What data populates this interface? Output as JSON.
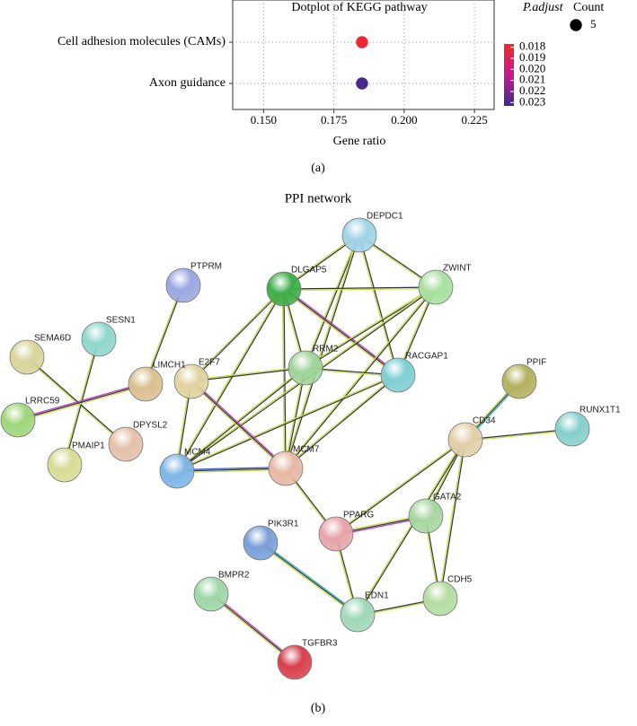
{
  "chart_data": {
    "type": "dotplot",
    "title": "Dotplot of KEGG pathway",
    "categories": [
      "Cell adhesion molecules (CAMs)",
      "Axon guidance"
    ],
    "values": [
      0.185,
      0.185
    ],
    "p_adjust": [
      0.018,
      0.023
    ],
    "counts": [
      5,
      5
    ],
    "x_label": "Gene ratio",
    "xlim": [
      0.139,
      0.232
    ],
    "xticks": [
      {
        "value": 0.15,
        "label": "0.150"
      },
      {
        "value": 0.175,
        "label": "0.175"
      },
      {
        "value": 0.2,
        "label": "0.200"
      },
      {
        "value": 0.225,
        "label": "0.225"
      }
    ],
    "grid": true,
    "colorbar": {
      "title": "P.adjust",
      "lim": [
        0.0177,
        0.0233
      ],
      "colors": [
        "#ee2a24",
        "#c8198f",
        "#3a2a8c"
      ],
      "ticks": [
        0.018,
        0.019,
        {
          "value": 0.02,
          "label": "0.020"
        },
        0.021,
        0.022,
        0.023
      ]
    },
    "size_legend": {
      "title": "Count",
      "values": [
        5
      ]
    },
    "caption": "(a)"
  },
  "network": {
    "title": "PPI network",
    "caption": "(b)",
    "nodes": [
      "DEPDC1",
      "PTPRM",
      "DLGAP5",
      "ZWINT",
      "SEMA6D",
      "SESN1",
      "E2F7",
      "LIMCH1",
      "RRM2",
      "RACGAP1",
      "LRRC59",
      "DPYSL2",
      "PMAIP1",
      "PPIF",
      "CD34",
      "RUNX1T1",
      "MCM4",
      "MCM7",
      "GATA2",
      "PPARG",
      "PIK3R1",
      "BMPR2",
      "EDN1",
      "CDH5",
      "TGFBR3"
    ]
  }
}
